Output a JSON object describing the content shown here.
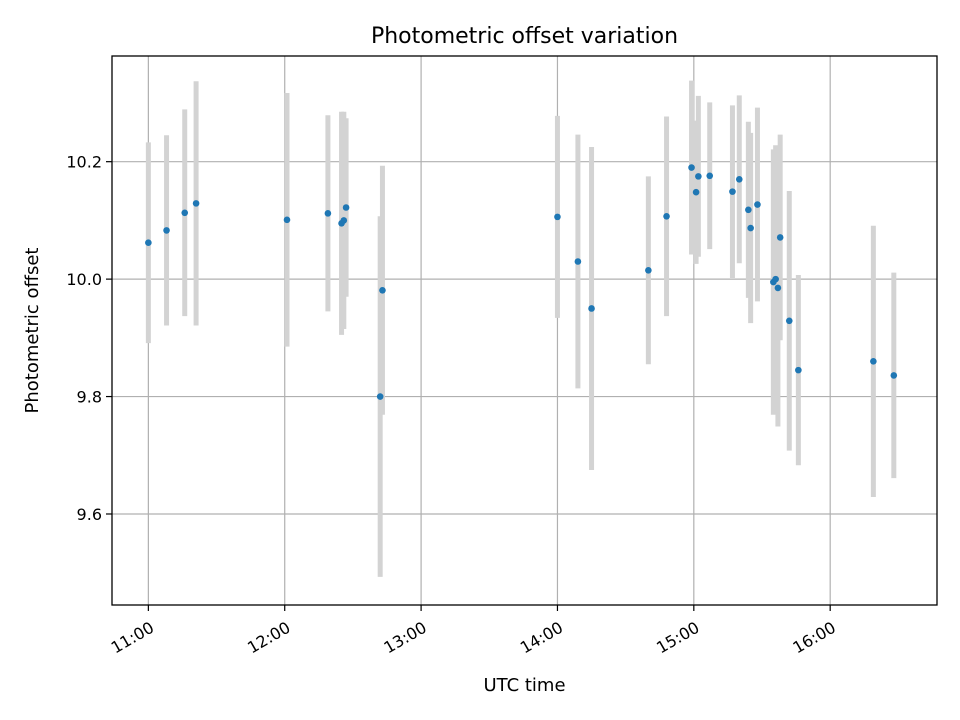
{
  "chart_data": {
    "type": "scatter",
    "title": "Photometric offset variation",
    "xlabel": "UTC time",
    "ylabel": "Photometric offset",
    "grid": true,
    "x_unit": "time of day (UTC)",
    "xlim": [
      "10:44",
      "16:47"
    ],
    "ylim": [
      9.445,
      10.38
    ],
    "x_ticks": [
      {
        "label": "11:00",
        "value": "11:00"
      },
      {
        "label": "12:00",
        "value": "12:00"
      },
      {
        "label": "13:00",
        "value": "13:00"
      },
      {
        "label": "14:00",
        "value": "14:00"
      },
      {
        "label": "15:00",
        "value": "15:00"
      },
      {
        "label": "16:00",
        "value": "16:00"
      }
    ],
    "y_ticks": [
      {
        "label": "9.6",
        "value": 9.6
      },
      {
        "label": "9.8",
        "value": 9.8
      },
      {
        "label": "10.0",
        "value": 10.0
      },
      {
        "label": "10.2",
        "value": 10.2
      }
    ],
    "colors": {
      "point": "#1f77b4",
      "error_bar": "#d3d3d3",
      "grid": "#b0b0b0"
    },
    "points": [
      {
        "time": "11:00",
        "y": 10.062,
        "err": 0.171
      },
      {
        "time": "11:08",
        "y": 10.083,
        "err": 0.162
      },
      {
        "time": "11:16",
        "y": 10.113,
        "err": 0.176
      },
      {
        "time": "11:21",
        "y": 10.129,
        "err": 0.208
      },
      {
        "time": "12:01",
        "y": 10.101,
        "err": 0.216
      },
      {
        "time": "12:19",
        "y": 10.112,
        "err": 0.167
      },
      {
        "time": "12:25",
        "y": 10.095,
        "err": 0.19
      },
      {
        "time": "12:26",
        "y": 10.1,
        "err": 0.185
      },
      {
        "time": "12:27",
        "y": 10.122,
        "err": 0.152
      },
      {
        "time": "12:42",
        "y": 9.8,
        "err": 0.307
      },
      {
        "time": "12:43",
        "y": 9.981,
        "err": 0.212
      },
      {
        "time": "14:00",
        "y": 10.106,
        "err": 0.172
      },
      {
        "time": "14:09",
        "y": 10.03,
        "err": 0.216
      },
      {
        "time": "14:15",
        "y": 9.95,
        "err": 0.275
      },
      {
        "time": "14:40",
        "y": 10.015,
        "err": 0.16
      },
      {
        "time": "14:48",
        "y": 10.107,
        "err": 0.17
      },
      {
        "time": "14:59",
        "y": 10.19,
        "err": 0.148
      },
      {
        "time": "15:01",
        "y": 10.148,
        "err": 0.122
      },
      {
        "time": "15:02",
        "y": 10.175,
        "err": 0.137
      },
      {
        "time": "15:07",
        "y": 10.176,
        "err": 0.125
      },
      {
        "time": "15:17",
        "y": 10.149,
        "err": 0.147
      },
      {
        "time": "15:20",
        "y": 10.17,
        "err": 0.143
      },
      {
        "time": "15:24",
        "y": 10.118,
        "err": 0.15
      },
      {
        "time": "15:25",
        "y": 10.087,
        "err": 0.162
      },
      {
        "time": "15:28",
        "y": 10.127,
        "err": 0.165
      },
      {
        "time": "15:35",
        "y": 9.995,
        "err": 0.226
      },
      {
        "time": "15:36",
        "y": 10.0,
        "err": 0.228
      },
      {
        "time": "15:37",
        "y": 9.985,
        "err": 0.236
      },
      {
        "time": "15:38",
        "y": 10.071,
        "err": 0.175
      },
      {
        "time": "15:42",
        "y": 9.929,
        "err": 0.221
      },
      {
        "time": "15:46",
        "y": 9.845,
        "err": 0.162
      },
      {
        "time": "16:19",
        "y": 9.86,
        "err": 0.231
      },
      {
        "time": "16:28",
        "y": 9.836,
        "err": 0.175
      }
    ]
  }
}
